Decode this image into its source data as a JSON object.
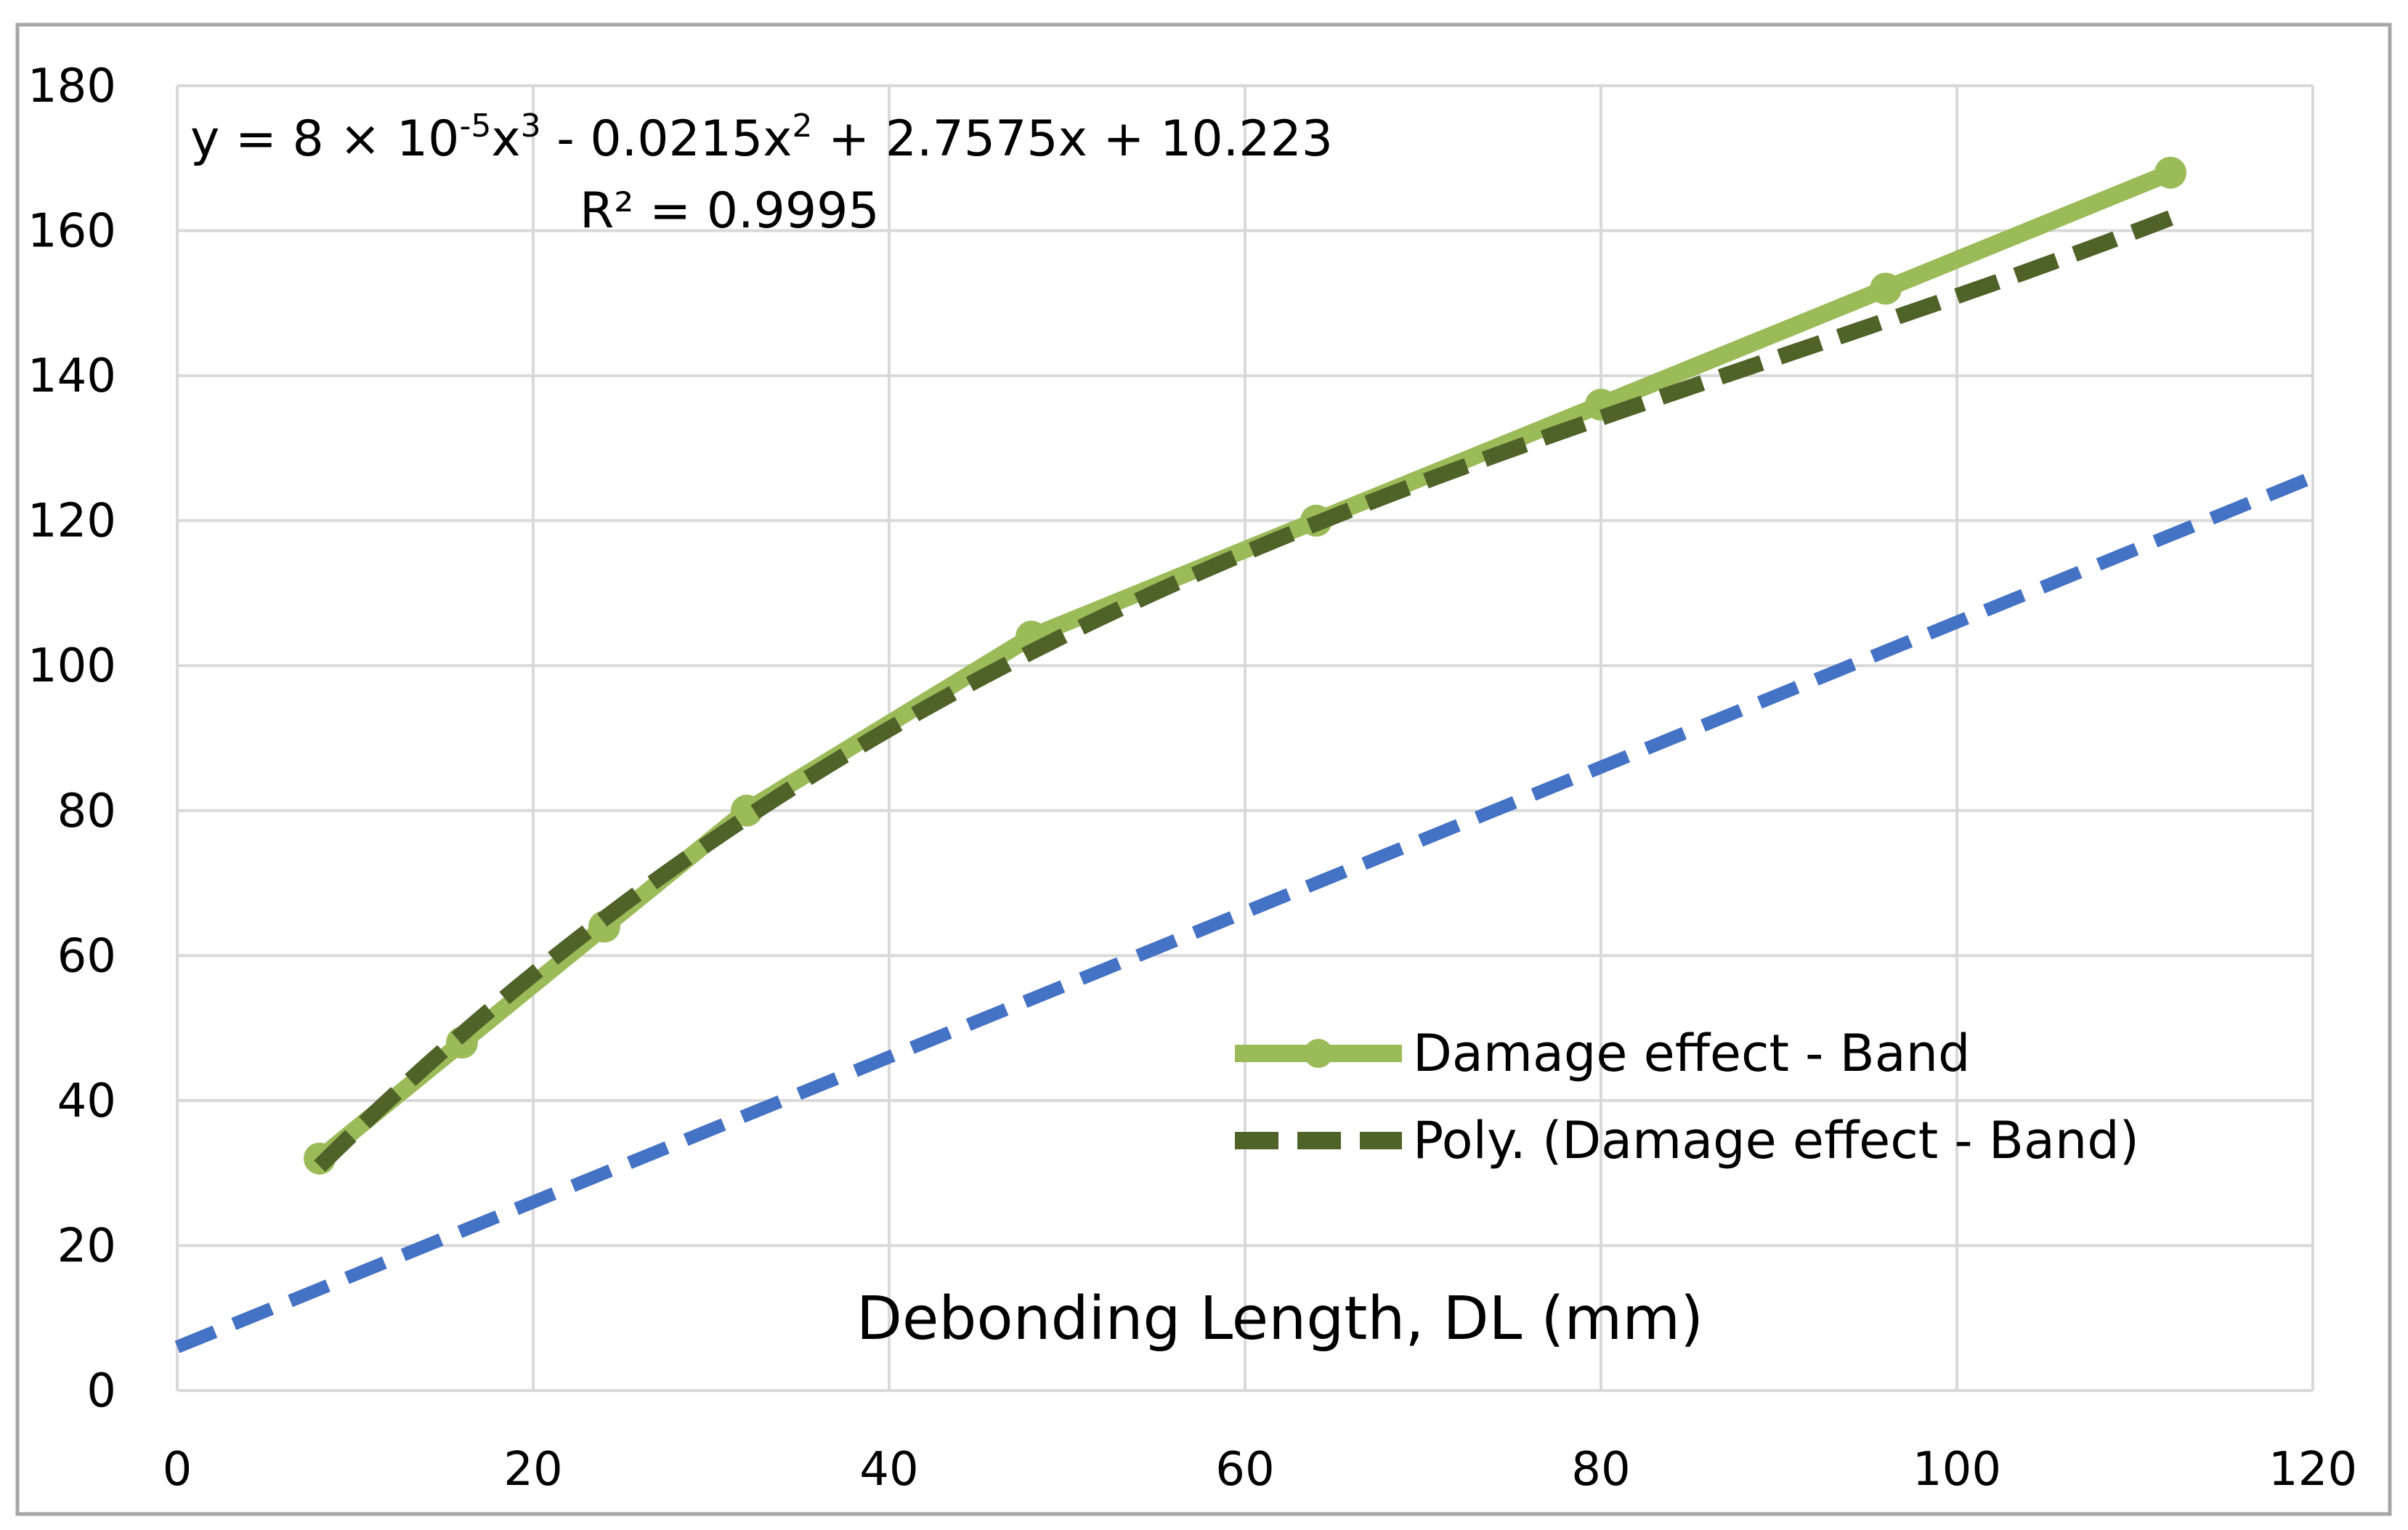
{
  "chart_data": {
    "type": "line",
    "title": "",
    "xlabel": "Debonding Length, DL (mm)",
    "ylabel": "",
    "xlim": [
      0,
      120
    ],
    "ylim": [
      0,
      180
    ],
    "x_ticks": [
      0,
      20,
      40,
      60,
      80,
      100,
      120
    ],
    "y_ticks": [
      0,
      20,
      40,
      60,
      80,
      100,
      120,
      140,
      160,
      180
    ],
    "grid": true,
    "legend_position": "right-center",
    "series": [
      {
        "name": "Damage effect - Band",
        "style": "solid-with-markers",
        "color": "#9BBB59",
        "x": [
          8,
          16,
          24,
          32,
          48,
          64,
          80,
          96,
          112
        ],
        "y": [
          32,
          48,
          64,
          80,
          104,
          120,
          136,
          152,
          168
        ]
      },
      {
        "name": "Poly. (Damage effect - Band)",
        "style": "dashed-trendline",
        "color": "#4F6228",
        "coefficients": {
          "a3": 8e-05,
          "a2": -0.0215,
          "a1": 2.7575,
          "a0": 10.223
        },
        "x_range": [
          8,
          112
        ]
      },
      {
        "name": "",
        "style": "dashed-line",
        "color": "#4472C4",
        "x": [
          0,
          120
        ],
        "y": [
          6,
          126
        ]
      }
    ],
    "annotations": {
      "equation": {
        "prefix": "y = 8 × 10",
        "exp1": "-5",
        "part2": "x",
        "exp2": "3",
        "part3": " - 0.0215x",
        "exp3": "2",
        "part4": " + 2.7575x + 10.223"
      },
      "r_squared": "R² = 0.9995"
    }
  }
}
